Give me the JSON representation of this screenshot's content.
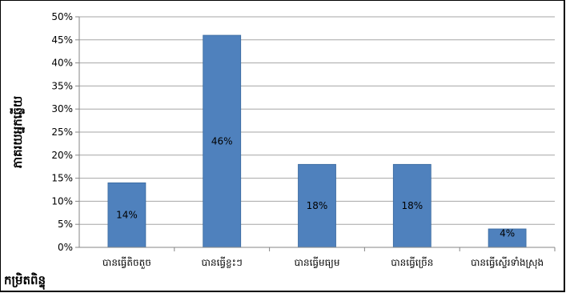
{
  "chart_data": {
    "type": "bar",
    "categories": [
      "បានធ្វើតិចតួច",
      "បានធ្វើខ្លះៗ",
      "បានធ្វើមធ្យម",
      "បានធ្វើច្រើន",
      "បានធ្វើស្ទើរទាំងស្រុង"
    ],
    "values": [
      14,
      46,
      18,
      18,
      4
    ],
    "data_labels": [
      "14%",
      "46%",
      "18%",
      "18%",
      "4%"
    ],
    "title": "",
    "xlabel": "កម្រិតពិន្ទុ",
    "ylabel": "ភាគរយអ្នកឆ្លើយ",
    "ylim": [
      0,
      50
    ],
    "yticks": [
      0,
      5,
      10,
      15,
      20,
      25,
      30,
      35,
      40,
      45,
      50
    ],
    "ytick_format": "%",
    "grid": true,
    "legend": "none",
    "colors": {
      "bar": "#4F81BD",
      "bar_edge": "#3A6A9E",
      "grid": "#A6A6A6",
      "axis": "#868686"
    }
  }
}
